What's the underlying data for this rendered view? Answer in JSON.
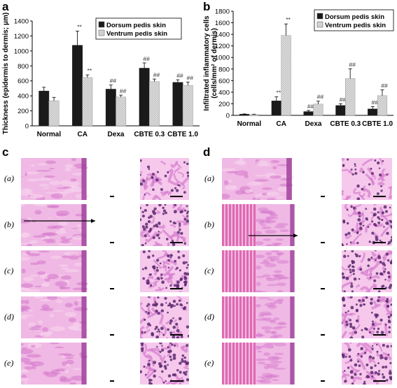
{
  "panels": {
    "a": "a",
    "b": "b",
    "c": "c",
    "d": "d"
  },
  "row_labels": [
    "(a)",
    "(b)",
    "(c)",
    "(d)",
    "(e)"
  ],
  "chart_data": [
    {
      "type": "bar",
      "panel": "a",
      "categories": [
        "Normal",
        "CA",
        "Dexa",
        "CBTE 0.3",
        "CBTE 1.0"
      ],
      "ylabel": "Thickness (epidermis to dermis; μm)",
      "ylim": [
        0,
        1400
      ],
      "yticks": [
        0,
        200,
        400,
        600,
        800,
        1000,
        1200,
        1400
      ],
      "legend_position": "top-right",
      "series": [
        {
          "name": "Dorsum pedis skin",
          "color": "#1a1a1a",
          "values": [
            465,
            1075,
            490,
            770,
            580
          ],
          "errors": [
            50,
            190,
            55,
            70,
            35
          ],
          "annotations": [
            "",
            "**",
            "##",
            "##",
            "##"
          ]
        },
        {
          "name": "Ventrum pedis skin",
          "color": "#d6d6d6",
          "values": [
            335,
            645,
            385,
            590,
            540
          ],
          "errors": [
            45,
            35,
            25,
            35,
            45
          ],
          "annotations": [
            "",
            "**",
            "##",
            "##",
            "##"
          ]
        }
      ]
    },
    {
      "type": "bar",
      "panel": "b",
      "categories": [
        "Normal",
        "CA",
        "Dexa",
        "CBTE 0.3",
        "CBTE 1.0"
      ],
      "ylabel": "Infiltrated inflammatory cells (cells/mm² of dermis)",
      "ylim": [
        0,
        1800
      ],
      "yticks": [
        0,
        200,
        400,
        600,
        800,
        1000,
        1200,
        1400,
        1600,
        1800
      ],
      "legend_position": "top-right",
      "series": [
        {
          "name": "Dorsum pedis skin",
          "color": "#1a1a1a",
          "values": [
            20,
            250,
            65,
            170,
            110
          ],
          "errors": [
            5,
            70,
            20,
            30,
            40
          ],
          "annotations": [
            "",
            "**",
            "##",
            "##",
            "##"
          ]
        },
        {
          "name": "Ventrum pedis skin",
          "color": "#d6d6d6",
          "values": [
            15,
            1380,
            195,
            635,
            340
          ],
          "errors": [
            5,
            200,
            50,
            170,
            100
          ],
          "annotations": [
            "",
            "**",
            "##",
            "##",
            "##"
          ]
        }
      ]
    }
  ],
  "colors": {
    "stain_light": "#f0b8e4",
    "stain_mid": "#d67ccd",
    "stain_dark": "#9b3b97",
    "nucleus": "#5a2a70",
    "muscle": "#d9479a"
  }
}
